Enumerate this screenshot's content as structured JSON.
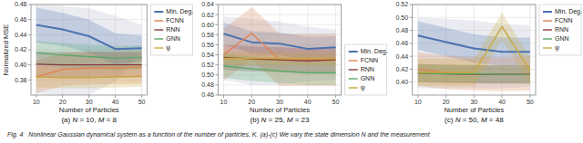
{
  "chart_data": [
    {
      "type": "line",
      "subtitle": "(a) N = 10, M = 8",
      "xlabel": "Number of Particles",
      "ylabel": "Normalized MSE",
      "x": [
        10,
        20,
        30,
        40,
        50
      ],
      "xlim": [
        8,
        52
      ],
      "xticks": [
        10,
        20,
        30,
        40,
        50
      ],
      "ylim": [
        0.36,
        0.48
      ],
      "yticks": [
        0.38,
        {
          "value": 0.4,
          "label": "0.40"
        },
        0.42,
        0.44,
        0.46,
        0.48
      ],
      "grid": true,
      "legend": "upper right",
      "envelope": {
        "color": "#a0a8c0",
        "lower": [
          0.362,
          0.36,
          0.36,
          0.378,
          0.418
        ],
        "upper": [
          0.48,
          0.478,
          0.475,
          0.465,
          0.453
        ]
      },
      "series": [
        {
          "name": "Min. Deg.",
          "color": "#4c72b0",
          "values": [
            0.453,
            0.447,
            0.438,
            0.421,
            0.422
          ],
          "lower": [
            0.43,
            0.425,
            0.416,
            0.4,
            0.405
          ],
          "upper": [
            0.476,
            0.469,
            0.46,
            0.442,
            0.439
          ]
        },
        {
          "name": "FCNN",
          "color": "#dd8452",
          "values": [
            0.384,
            0.394,
            0.396,
            0.396,
            0.397
          ],
          "lower": [
            0.362,
            0.372,
            0.374,
            0.374,
            0.375
          ],
          "upper": [
            0.406,
            0.416,
            0.418,
            0.418,
            0.419
          ]
        },
        {
          "name": "RNN",
          "color": "#8c3b3b",
          "values": [
            0.401,
            0.4,
            0.4,
            0.4,
            0.4
          ],
          "lower": [
            0.384,
            0.383,
            0.383,
            0.383,
            0.383
          ],
          "upper": [
            0.418,
            0.417,
            0.417,
            0.417,
            0.417
          ]
        },
        {
          "name": "GNN",
          "color": "#55a868",
          "values": [
            0.416,
            0.413,
            0.411,
            0.409,
            0.41
          ],
          "lower": [
            0.4,
            0.397,
            0.395,
            0.393,
            0.394
          ],
          "upper": [
            0.432,
            0.429,
            0.427,
            0.425,
            0.426
          ]
        },
        {
          "name": "ψ",
          "color": "#c7a83e",
          "values": [
            0.384,
            0.383,
            0.383,
            0.384,
            0.385
          ],
          "lower": [
            0.37,
            0.369,
            0.369,
            0.37,
            0.371
          ],
          "upper": [
            0.398,
            0.397,
            0.397,
            0.398,
            0.399
          ]
        }
      ],
      "annotations": [
        "Fig. 4   Nonlinear Gaussian dynamical system as a function of the number of particles, K. (a)-(c) We vary the state dimension N and the measurement"
      ]
    },
    {
      "type": "line",
      "subtitle": "(b) N = 25, M = 23",
      "xlabel": "Number of Particles",
      "x": [
        10,
        20,
        30,
        40,
        50
      ],
      "xlim": [
        8,
        52
      ],
      "xticks": [
        10,
        20,
        30,
        40,
        50
      ],
      "ylim": [
        0.46,
        0.64
      ],
      "yticks": [
        0.46,
        0.48,
        {
          "value": 0.5,
          "label": "0.50"
        },
        0.52,
        0.54,
        0.56,
        0.58,
        {
          "value": 0.6,
          "label": "0.60"
        },
        0.62,
        0.64
      ],
      "grid": true,
      "legend": "lower right",
      "envelope": {
        "color": "#a0a8c0",
        "lower": [
          0.49,
          0.48,
          0.48,
          0.488,
          0.49
        ],
        "upper": [
          0.616,
          0.612,
          0.606,
          0.596,
          0.59
        ]
      },
      "series": [
        {
          "name": "Min. Deg.",
          "color": "#4c72b0",
          "values": [
            0.582,
            0.565,
            0.562,
            0.552,
            0.555
          ],
          "lower": [
            0.56,
            0.543,
            0.54,
            0.528,
            0.533
          ],
          "upper": [
            0.604,
            0.587,
            0.584,
            0.576,
            0.577
          ]
        },
        {
          "name": "FCNN",
          "color": "#dd8452",
          "values": [
            0.54,
            0.583,
            0.53,
            0.53,
            0.53
          ],
          "lower": [
            0.488,
            0.531,
            0.478,
            0.478,
            0.478
          ],
          "upper": [
            0.592,
            0.635,
            0.582,
            0.582,
            0.582
          ]
        },
        {
          "name": "RNN",
          "color": "#8c3b3b",
          "values": [
            0.535,
            0.532,
            0.53,
            0.528,
            0.53
          ],
          "lower": [
            0.51,
            0.507,
            0.505,
            0.503,
            0.505
          ],
          "upper": [
            0.56,
            0.557,
            0.555,
            0.553,
            0.555
          ]
        },
        {
          "name": "GNN",
          "color": "#55a868",
          "values": [
            0.518,
            0.512,
            0.508,
            0.504,
            0.504
          ],
          "lower": [
            0.494,
            0.488,
            0.484,
            0.48,
            0.48
          ],
          "upper": [
            0.542,
            0.536,
            0.532,
            0.528,
            0.528
          ]
        },
        {
          "name": "ψ",
          "color": "#c7a83e",
          "values": [
            0.533,
            0.533,
            0.533,
            0.533,
            0.533
          ],
          "lower": [
            0.52,
            0.52,
            0.52,
            0.52,
            0.52
          ],
          "upper": [
            0.546,
            0.546,
            0.546,
            0.546,
            0.546
          ]
        }
      ]
    },
    {
      "type": "line",
      "subtitle": "(c) N = 50, M = 48",
      "xlabel": "Number of Particles",
      "x": [
        10,
        20,
        30,
        40,
        50
      ],
      "xlim": [
        8,
        52
      ],
      "xticks": [
        10,
        20,
        30,
        40,
        50
      ],
      "ylim": [
        0.38,
        0.52
      ],
      "yticks": [
        {
          "value": 0.4,
          "label": "0.40"
        },
        0.42,
        0.44,
        0.46,
        0.48,
        {
          "value": 0.5,
          "label": "0.50"
        },
        0.52
      ],
      "grid": true,
      "legend": "upper right",
      "envelope": {
        "color": "#a0a8c0",
        "lower": [
          0.39,
          0.39,
          0.39,
          0.39,
          0.393
        ],
        "upper": [
          0.5,
          0.498,
          0.495,
          0.49,
          0.488
        ]
      },
      "series": [
        {
          "name": "Min. Deg.",
          "color": "#4c72b0",
          "values": [
            0.472,
            0.462,
            0.452,
            0.447,
            0.447
          ],
          "lower": [
            0.45,
            0.44,
            0.43,
            0.425,
            0.425
          ],
          "upper": [
            0.494,
            0.484,
            0.474,
            0.469,
            0.469
          ]
        },
        {
          "name": "FCNN",
          "color": "#dd8452",
          "values": [
            0.42,
            0.415,
            0.413,
            0.412,
            0.413
          ],
          "lower": [
            0.394,
            0.389,
            0.387,
            0.386,
            0.387
          ],
          "upper": [
            0.446,
            0.441,
            0.439,
            0.438,
            0.439
          ]
        },
        {
          "name": "RNN",
          "color": "#8c3b3b",
          "values": [
            0.414,
            0.413,
            0.412,
            0.412,
            0.412
          ],
          "lower": [
            0.4,
            0.399,
            0.398,
            0.398,
            0.398
          ],
          "upper": [
            0.428,
            0.427,
            0.426,
            0.426,
            0.426
          ]
        },
        {
          "name": "GNN",
          "color": "#55a868",
          "values": [
            0.414,
            0.413,
            0.413,
            0.412,
            0.412
          ],
          "lower": [
            0.4,
            0.399,
            0.399,
            0.398,
            0.398
          ],
          "upper": [
            0.428,
            0.427,
            0.427,
            0.426,
            0.426
          ]
        },
        {
          "name": "ψ",
          "color": "#c7a83e",
          "values": [
            0.415,
            0.415,
            0.415,
            0.486,
            0.418
          ],
          "lower": [
            0.394,
            0.394,
            0.394,
            0.465,
            0.397
          ],
          "upper": [
            0.436,
            0.436,
            0.436,
            0.507,
            0.439
          ]
        }
      ]
    }
  ]
}
